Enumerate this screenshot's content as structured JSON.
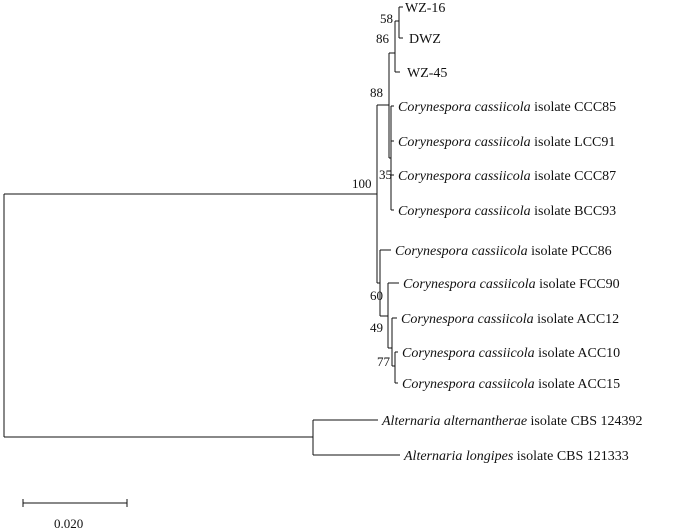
{
  "tree": {
    "taxa": {
      "wz16": {
        "label": "WZ-16"
      },
      "dwz": {
        "label": "DWZ"
      },
      "wz45": {
        "label": "WZ-45"
      },
      "ccc85": {
        "genus_species": "Corynespora cassiicola",
        "rest": " isolate CCC85"
      },
      "lcc91": {
        "genus_species": "Corynespora cassiicola",
        "rest": " isolate LCC91"
      },
      "ccc87": {
        "genus_species": "Corynespora cassiicola",
        "rest": " isolate CCC87"
      },
      "bcc93": {
        "genus_species": "Corynespora cassiicola",
        "rest": " isolate BCC93"
      },
      "pcc86": {
        "genus_species": "Corynespora cassiicola",
        "rest": " isolate PCC86"
      },
      "fcc90": {
        "genus_species": "Corynespora cassiicola",
        "rest": " isolate FCC90"
      },
      "acc12": {
        "genus_species": "Corynespora cassiicola",
        "rest": " isolate ACC12"
      },
      "acc10": {
        "genus_species": "Corynespora cassiicola",
        "rest": " isolate ACC10"
      },
      "acc15": {
        "genus_species": "Corynespora cassiicola",
        "rest": " isolate ACC15"
      },
      "alt_alt": {
        "genus_species": "Alternaria alternantherae",
        "rest": " isolate CBS 124392"
      },
      "alt_long": {
        "genus_species": "Alternaria longipes",
        "rest": " isolate CBS 121333"
      }
    },
    "support": {
      "s58": "58",
      "s86": "86",
      "s88": "88",
      "s35": "35",
      "s100": "100",
      "s60": "60",
      "s49": "49",
      "s77": "77"
    },
    "scale": {
      "label": "0.020"
    }
  }
}
